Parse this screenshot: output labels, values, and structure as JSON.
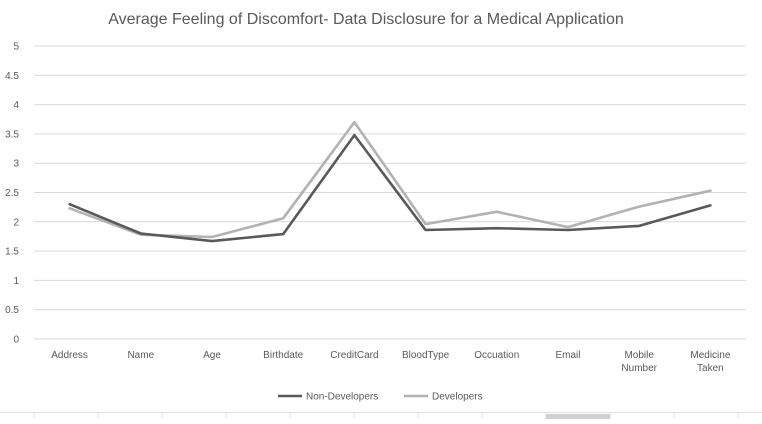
{
  "chart_data": {
    "type": "line",
    "title": "Average Feeling of Discomfort- Data Disclosure for a Medical Application",
    "xlabel": "",
    "ylabel": "",
    "ylim": [
      0,
      5
    ],
    "yticks": [
      "0",
      "0.5",
      "1",
      "1.5",
      "2",
      "2.5",
      "3",
      "3.5",
      "4",
      "4.5",
      "5"
    ],
    "categories": [
      "Address",
      "Name",
      "Age",
      "Birthdate",
      "CreditCard",
      "BloodType",
      "Occuation",
      "Email",
      "Mobile Number",
      "Medicine Taken"
    ],
    "category_lines": [
      [
        "Address"
      ],
      [
        "Name"
      ],
      [
        "Age"
      ],
      [
        "Birthdate"
      ],
      [
        "CreditCard"
      ],
      [
        "BloodType"
      ],
      [
        "Occuation"
      ],
      [
        "Email"
      ],
      [
        "Mobile",
        "Number"
      ],
      [
        "Medicine",
        "Taken"
      ]
    ],
    "grid": true,
    "legend_position": "bottom",
    "series": [
      {
        "name": "Non-Developers",
        "color": "#595959",
        "values": [
          2.3,
          1.8,
          1.67,
          1.79,
          3.48,
          1.86,
          1.89,
          1.86,
          1.93,
          2.28
        ]
      },
      {
        "name": "Developers",
        "color": "#b2b2b2",
        "values": [
          2.23,
          1.78,
          1.74,
          2.06,
          3.7,
          1.96,
          2.17,
          1.91,
          2.26,
          2.53
        ]
      }
    ]
  }
}
